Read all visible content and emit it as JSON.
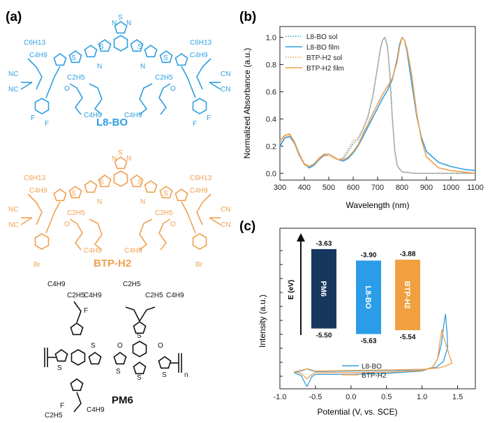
{
  "panels": {
    "a": {
      "label": "(a)",
      "molecules": [
        {
          "name": "L8-BO",
          "color": "#2f9fe0",
          "groups": [
            "C6H13",
            "C4H9",
            "C6H13",
            "C4H9",
            "C2H5",
            "C4H9",
            "C4H9",
            "C2H5"
          ],
          "atoms": [
            "N",
            "S",
            "N",
            "S",
            "S",
            "S",
            "S",
            "N",
            "N",
            "NC",
            "NC",
            "CN",
            "CN",
            "O",
            "O",
            "F",
            "F",
            "F",
            "F"
          ]
        },
        {
          "name": "BTP-H2",
          "color": "#f0a050",
          "groups": [
            "C6H13",
            "C4H9",
            "C6H13",
            "C4H9",
            "C2H5",
            "C4H9",
            "C4H9",
            "C2H5"
          ],
          "atoms": [
            "N",
            "S",
            "N",
            "S",
            "S",
            "S",
            "S",
            "N",
            "N",
            "NC",
            "NC",
            "CN",
            "CN",
            "O",
            "O",
            "Br",
            "Br"
          ]
        },
        {
          "name": "PM6",
          "color": "#111111",
          "groups": [
            "C4H9",
            "C2H5",
            "C4H9",
            "C2H5",
            "C2H5",
            "C4H9",
            "C2H5",
            "C4H9"
          ],
          "atoms": [
            "F",
            "F",
            "S",
            "S",
            "S",
            "S",
            "S",
            "S",
            "O",
            "O",
            "n"
          ]
        }
      ]
    },
    "b": {
      "label": "(b)"
    },
    "c": {
      "label": "(c)"
    }
  },
  "chart_data": [
    {
      "type": "line",
      "title": "",
      "xlabel": "Wavelength (nm)",
      "ylabel": "Normalized Absorbance (a.u.)",
      "xlim": [
        300,
        1100
      ],
      "ylim": [
        -0.05,
        1.08
      ],
      "xticks": [
        "300",
        "400",
        "500",
        "600",
        "700",
        "800",
        "900",
        "1000",
        "1100"
      ],
      "yticks": [
        "0.0",
        "0.2",
        "0.4",
        "0.6",
        "0.8",
        "1.0"
      ],
      "legend": "top-left",
      "series": [
        {
          "name": "L8-BO sol",
          "color": "#2f9fe0",
          "style": "dotted",
          "x": [
            300,
            320,
            340,
            360,
            380,
            400,
            420,
            440,
            460,
            480,
            500,
            520,
            540,
            560,
            580,
            600,
            620,
            640,
            660,
            680,
            700,
            710,
            720,
            730,
            740,
            750,
            760,
            770,
            780,
            800,
            850,
            900,
            1000,
            1100
          ],
          "y": [
            0.2,
            0.26,
            0.27,
            0.22,
            0.14,
            0.07,
            0.05,
            0.07,
            0.11,
            0.14,
            0.14,
            0.12,
            0.1,
            0.11,
            0.16,
            0.22,
            0.25,
            0.32,
            0.41,
            0.56,
            0.78,
            0.9,
            0.98,
            1.0,
            0.94,
            0.74,
            0.42,
            0.18,
            0.06,
            0.01,
            0.0,
            0.0,
            0.0,
            0.0
          ]
        },
        {
          "name": "L8-BO film",
          "color": "#2f9fe0",
          "style": "solid",
          "x": [
            300,
            320,
            340,
            360,
            380,
            400,
            420,
            440,
            460,
            480,
            500,
            520,
            540,
            560,
            580,
            600,
            620,
            640,
            660,
            680,
            700,
            720,
            740,
            760,
            780,
            790,
            800,
            810,
            820,
            840,
            860,
            880,
            900,
            950,
            1000,
            1050,
            1100
          ],
          "y": [
            0.2,
            0.26,
            0.27,
            0.22,
            0.13,
            0.07,
            0.04,
            0.06,
            0.1,
            0.13,
            0.14,
            0.12,
            0.1,
            0.09,
            0.11,
            0.15,
            0.2,
            0.27,
            0.34,
            0.41,
            0.48,
            0.55,
            0.61,
            0.69,
            0.84,
            0.95,
            1.0,
            0.98,
            0.9,
            0.66,
            0.42,
            0.26,
            0.16,
            0.08,
            0.05,
            0.03,
            0.02
          ]
        },
        {
          "name": "BTP-H2 sol",
          "color": "#f0a050",
          "style": "dotted",
          "x": [
            300,
            320,
            340,
            360,
            380,
            400,
            420,
            440,
            460,
            480,
            500,
            520,
            540,
            560,
            580,
            600,
            620,
            640,
            660,
            680,
            700,
            710,
            720,
            730,
            740,
            750,
            760,
            770,
            780,
            800,
            850,
            900,
            1000,
            1100
          ],
          "y": [
            0.22,
            0.27,
            0.28,
            0.22,
            0.13,
            0.06,
            0.05,
            0.07,
            0.1,
            0.13,
            0.13,
            0.11,
            0.1,
            0.12,
            0.18,
            0.24,
            0.26,
            0.33,
            0.42,
            0.57,
            0.79,
            0.91,
            0.98,
            1.0,
            0.93,
            0.72,
            0.4,
            0.16,
            0.05,
            0.01,
            0.0,
            0.0,
            0.0,
            0.0
          ]
        },
        {
          "name": "BTP-H2 film",
          "color": "#f0a050",
          "style": "solid",
          "x": [
            300,
            320,
            340,
            360,
            380,
            400,
            420,
            440,
            460,
            480,
            500,
            520,
            540,
            560,
            580,
            600,
            620,
            640,
            660,
            680,
            700,
            720,
            740,
            760,
            780,
            790,
            800,
            810,
            820,
            840,
            860,
            880,
            900,
            950,
            1000,
            1050,
            1100
          ],
          "y": [
            0.24,
            0.28,
            0.29,
            0.23,
            0.14,
            0.07,
            0.05,
            0.07,
            0.11,
            0.14,
            0.14,
            0.12,
            0.1,
            0.1,
            0.12,
            0.16,
            0.21,
            0.29,
            0.36,
            0.44,
            0.51,
            0.58,
            0.64,
            0.7,
            0.82,
            0.93,
            1.0,
            0.98,
            0.92,
            0.72,
            0.44,
            0.24,
            0.12,
            0.04,
            0.02,
            0.01,
            0.0
          ]
        }
      ]
    },
    {
      "type": "line",
      "title": "",
      "xlabel": "Potential (V, vs. SCE)",
      "ylabel": "Intensity (a.u.)",
      "xlim": [
        -1.0,
        1.75
      ],
      "xticks": [
        "-1.0",
        "-0.5",
        "0.0",
        "0.5",
        "1.0",
        "1.5"
      ],
      "yticks": [],
      "legend": "bottom-center",
      "series": [
        {
          "name": "L8-BO",
          "color": "#2f9fe0",
          "style": "solid",
          "x": [
            -0.8,
            -0.7,
            -0.62,
            -0.55,
            -0.5,
            -0.3,
            0.0,
            0.5,
            1.0,
            1.15,
            1.22,
            1.27,
            1.3,
            1.33,
            1.35,
            1.36,
            1.3,
            1.2,
            1.1,
            1.0,
            0.5,
            0.0,
            -0.5,
            -0.58,
            -0.62,
            -0.68,
            -0.75,
            -0.8
          ],
          "y": [
            -0.05,
            -0.1,
            -0.3,
            -0.12,
            -0.08,
            -0.08,
            -0.08,
            -0.06,
            -0.02,
            0.05,
            0.2,
            0.45,
            0.75,
            1.0,
            0.7,
            0.4,
            0.15,
            0.05,
            0.02,
            0.0,
            -0.01,
            -0.02,
            -0.03,
            0.0,
            0.02,
            -0.01,
            -0.03,
            -0.05
          ]
        },
        {
          "name": "BTP-H2",
          "color": "#f0a050",
          "style": "solid",
          "x": [
            -0.8,
            -0.7,
            -0.62,
            -0.55,
            -0.5,
            -0.3,
            0.0,
            0.5,
            1.0,
            1.15,
            1.22,
            1.25,
            1.28,
            1.3,
            1.35,
            1.4,
            1.42,
            1.35,
            1.25,
            1.1,
            1.0,
            0.5,
            0.0,
            -0.5,
            -0.58,
            -0.62,
            -0.68,
            -0.75,
            -0.8
          ],
          "y": [
            -0.03,
            -0.06,
            -0.16,
            -0.08,
            -0.05,
            -0.05,
            -0.05,
            -0.04,
            -0.01,
            0.05,
            0.2,
            0.5,
            0.72,
            0.6,
            0.4,
            0.2,
            0.12,
            0.08,
            0.04,
            0.02,
            0.01,
            0.0,
            -0.01,
            -0.02,
            0.01,
            0.02,
            0.0,
            -0.02,
            -0.03
          ]
        }
      ],
      "inset": {
        "axis_label": "E (eV)",
        "bars": [
          {
            "name": "PM6",
            "homo": "-5.50",
            "lumo": "-3.63",
            "homo_value": -5.5,
            "lumo_value": -3.63,
            "color": "#17375e"
          },
          {
            "name": "L8-BO",
            "homo": "-5.63",
            "lumo": "-3.90",
            "homo_value": -5.63,
            "lumo_value": -3.9,
            "color": "#2b9de8"
          },
          {
            "name": "BTP-H2",
            "homo": "-5.54",
            "lumo": "-3.88",
            "homo_value": -5.54,
            "lumo_value": -3.88,
            "color": "#f0a040"
          }
        ]
      }
    }
  ]
}
